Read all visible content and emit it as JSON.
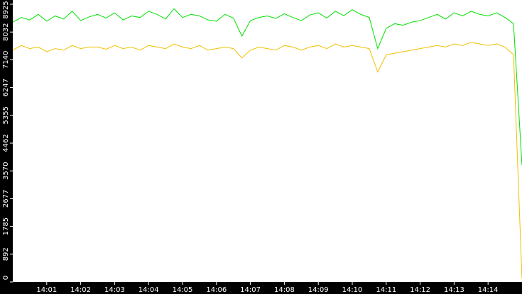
{
  "chart_data": {
    "type": "line",
    "x": [
      0,
      15,
      30,
      45,
      60,
      75,
      90,
      105,
      120,
      135,
      150,
      165,
      180,
      195,
      210,
      225,
      240,
      255,
      270,
      285,
      300,
      315,
      330,
      345,
      360,
      375,
      390,
      405,
      420,
      435,
      450,
      465,
      480,
      495,
      510,
      525,
      540,
      555,
      570,
      585,
      600,
      615,
      630,
      645,
      660,
      675,
      690,
      705,
      720,
      735,
      750,
      765,
      780,
      795,
      810,
      825,
      840,
      855,
      870,
      885,
      900
    ],
    "series": [
      {
        "color": "#00e000",
        "values": [
          8350,
          8500,
          8420,
          8600,
          8380,
          8550,
          8450,
          8700,
          8400,
          8520,
          8600,
          8480,
          8650,
          8420,
          8550,
          8500,
          8700,
          8600,
          8450,
          8780,
          8500,
          8600,
          8550,
          8420,
          8380,
          8600,
          8480,
          7900,
          8400,
          8500,
          8550,
          8470,
          8620,
          8500,
          8400,
          8580,
          8650,
          8480,
          8700,
          8560,
          8750,
          8600,
          8500,
          7500,
          8150,
          8300,
          8250,
          8350,
          8400,
          8500,
          8600,
          8450,
          8650,
          8550,
          8700,
          8600,
          8550,
          8650,
          8500,
          8300,
          3750
        ]
      },
      {
        "color": "#f0c000",
        "values": [
          7450,
          7600,
          7500,
          7550,
          7400,
          7500,
          7450,
          7600,
          7500,
          7550,
          7550,
          7480,
          7600,
          7500,
          7550,
          7450,
          7600,
          7550,
          7500,
          7650,
          7550,
          7500,
          7600,
          7450,
          7500,
          7550,
          7500,
          7200,
          7450,
          7550,
          7500,
          7450,
          7600,
          7550,
          7450,
          7550,
          7600,
          7500,
          7650,
          7550,
          7600,
          7550,
          7500,
          6750,
          7300,
          7350,
          7400,
          7450,
          7500,
          7550,
          7600,
          7550,
          7650,
          7600,
          7700,
          7650,
          7600,
          7650,
          7550,
          7300,
          100
        ]
      }
    ],
    "xlim": [
      0,
      900
    ],
    "xticks": [
      {
        "value": 60,
        "label": "14:01"
      },
      {
        "value": 120,
        "label": "14:02"
      },
      {
        "value": 180,
        "label": "14:03"
      },
      {
        "value": 240,
        "label": "14:04"
      },
      {
        "value": 300,
        "label": "14:05"
      },
      {
        "value": 360,
        "label": "14:06"
      },
      {
        "value": 420,
        "label": "14:07"
      },
      {
        "value": 480,
        "label": "14:08"
      },
      {
        "value": 540,
        "label": "14:09"
      },
      {
        "value": 600,
        "label": "14:10"
      },
      {
        "value": 660,
        "label": "14:11"
      },
      {
        "value": 720,
        "label": "14:12"
      },
      {
        "value": 780,
        "label": "14:13"
      },
      {
        "value": 840,
        "label": "14:14"
      }
    ],
    "ylim": [
      0,
      8925
    ],
    "yticks": [
      0,
      892,
      1785,
      2677,
      3570,
      4462,
      5355,
      6247,
      7140,
      8032,
      8925
    ]
  }
}
